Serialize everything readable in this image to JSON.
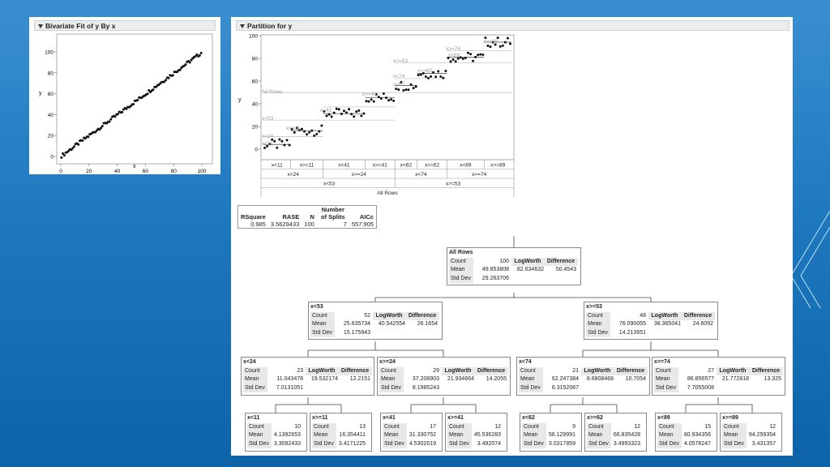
{
  "bivariate": {
    "title": "Bivariate Fit of y By x",
    "xlabel": "x",
    "ylabel": "y",
    "xticks": [
      "0",
      "20",
      "40",
      "60",
      "80",
      "100"
    ],
    "yticks": [
      "0",
      "20",
      "40",
      "60",
      "80",
      "100"
    ]
  },
  "partition": {
    "title": "Partition for y",
    "ylabel": "y",
    "yticks": [
      "0",
      "20",
      "40",
      "60",
      "80",
      "100"
    ],
    "plot_labels": [
      "All Rows",
      "x<53",
      "x<24",
      "x<11",
      "x>=11",
      "x<41",
      "x>=41",
      "x>=53",
      "x<74",
      "x<62",
      "x>=62",
      "x>=74",
      "x<89",
      "x>=89"
    ],
    "axis_rows": {
      "row1": [
        "x<11",
        "x>=11",
        "x<41",
        "x>=41",
        "x<62",
        "x>=62",
        "x<89",
        "x>=89"
      ],
      "row2": [
        "x<24",
        "x>=24",
        "x<74",
        "x>=74"
      ],
      "row3": [
        "x<53",
        "x>=53"
      ],
      "row4": "All Rows"
    }
  },
  "summary": {
    "headers": [
      "RSquare",
      "RASE",
      "N",
      "Number of Splits",
      "AICc"
    ],
    "values": [
      "0.985",
      "3.5629433",
      "100",
      "7",
      "557.905"
    ]
  },
  "tree": {
    "labels": {
      "count": "Count",
      "mean": "Mean",
      "std": "Std Dev",
      "logworth": "LogWorth",
      "difference": "Difference"
    },
    "all": {
      "title": "All Rows",
      "count": "100",
      "mean": "49.853808",
      "std": "29.263706",
      "logworth": "82.634632",
      "difference": "50.4543"
    },
    "l": {
      "title": "x<53",
      "count": "52",
      "mean": "25.635734",
      "std": "15.175943",
      "logworth": "40.542554",
      "difference": "26.1654"
    },
    "r": {
      "title": "x>=53",
      "count": "48",
      "mean": "76.090055",
      "std": "14.213551",
      "logworth": "38.365041",
      "difference": "24.6092"
    },
    "ll": {
      "title": "x<24",
      "count": "23",
      "mean": "11.043478",
      "std": "7.0131051",
      "logworth": "19.532174",
      "difference": "12.2151"
    },
    "lr": {
      "title": "x>=24",
      "count": "29",
      "mean": "37.208903",
      "std": "8.1985243",
      "logworth": "21.934664",
      "difference": "14.2055"
    },
    "rl": {
      "title": "x<74",
      "count": "21",
      "mean": "62.247384",
      "std": "6.3152067",
      "logworth": "8.6808468",
      "difference": "10.7054"
    },
    "rr": {
      "title": "x>=74",
      "count": "27",
      "mean": "86.856577",
      "std": "7.7055008",
      "logworth": "21.772818",
      "difference": "13.325"
    },
    "lll": {
      "title": "x<11",
      "count": "10",
      "mean": "4.1392653",
      "std": "3.3092433"
    },
    "llr": {
      "title": "x>=11",
      "count": "13",
      "mean": "16.354411",
      "std": "3.4171225"
    },
    "lrl": {
      "title": "x<41",
      "count": "17",
      "mean": "31.330752",
      "std": "4.5302019"
    },
    "lrr": {
      "title": "x>=41",
      "count": "12",
      "mean": "45.536283",
      "std": "3.492074"
    },
    "rll": {
      "title": "x<62",
      "count": "9",
      "mean": "56.129991",
      "std": "3.0317859"
    },
    "rlr": {
      "title": "x>=62",
      "count": "12",
      "mean": "66.835428",
      "std": "3.4993323"
    },
    "rrl": {
      "title": "x<89",
      "count": "15",
      "mean": "80.934356",
      "std": "4.0578247"
    },
    "rrr": {
      "title": "x>=89",
      "count": "12",
      "mean": "94.259354",
      "std": "3.431357"
    }
  }
}
